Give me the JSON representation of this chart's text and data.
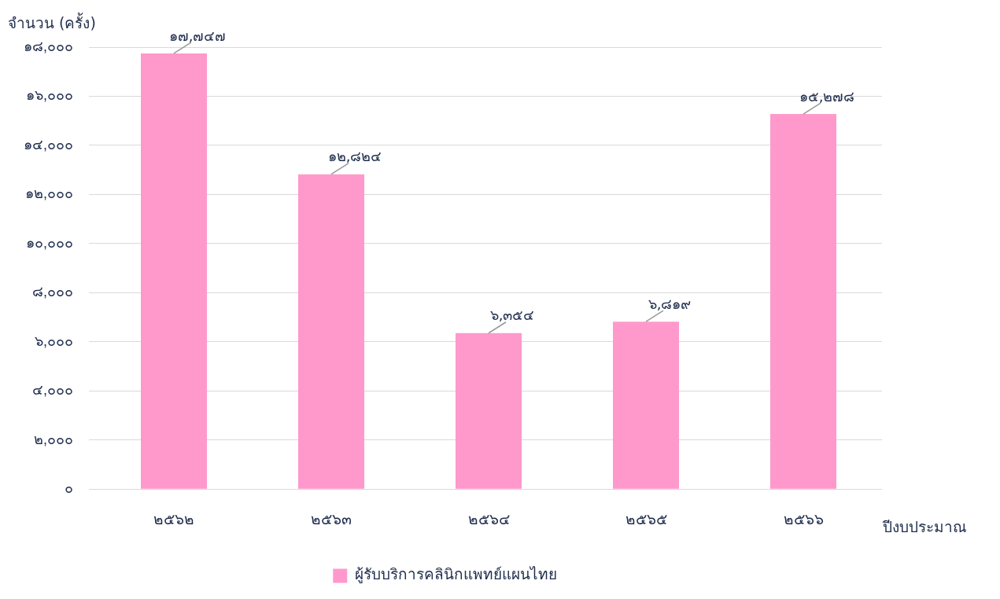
{
  "chart_data": {
    "type": "bar",
    "xlabel": "ปีงบประมาณ",
    "ylabel": "จำนวน (ครั้ง)",
    "categories": [
      "๒๕๖๒",
      "๒๕๖๓",
      "๒๕๖๔",
      "๒๕๖๕",
      "๒๕๖๖"
    ],
    "series": [
      {
        "name": "ผู้รับบริการคลินิกแพทย์แผนไทย",
        "color": "#ff99cc",
        "values": [
          17747,
          12824,
          6354,
          6819,
          15278
        ],
        "value_labels": [
          "๑๗,๗๔๗",
          "๑๒,๘๒๔",
          "๖,๓๕๔",
          "๖,๘๑๙",
          "๑๕,๒๗๘"
        ]
      }
    ],
    "ylim": [
      0,
      18000
    ],
    "yticks": [
      {
        "value": 0,
        "label": "๐"
      },
      {
        "value": 2000,
        "label": "๒,๐๐๐"
      },
      {
        "value": 4000,
        "label": "๔,๐๐๐"
      },
      {
        "value": 6000,
        "label": "๖,๐๐๐"
      },
      {
        "value": 8000,
        "label": "๘,๐๐๐"
      },
      {
        "value": 10000,
        "label": "๑๐,๐๐๐"
      },
      {
        "value": 12000,
        "label": "๑๒,๐๐๐"
      },
      {
        "value": 14000,
        "label": "๑๔,๐๐๐"
      },
      {
        "value": 16000,
        "label": "๑๖,๐๐๐"
      },
      {
        "value": 18000,
        "label": "๑๘,๐๐๐"
      }
    ],
    "grid": "y",
    "legend": "bottom"
  }
}
